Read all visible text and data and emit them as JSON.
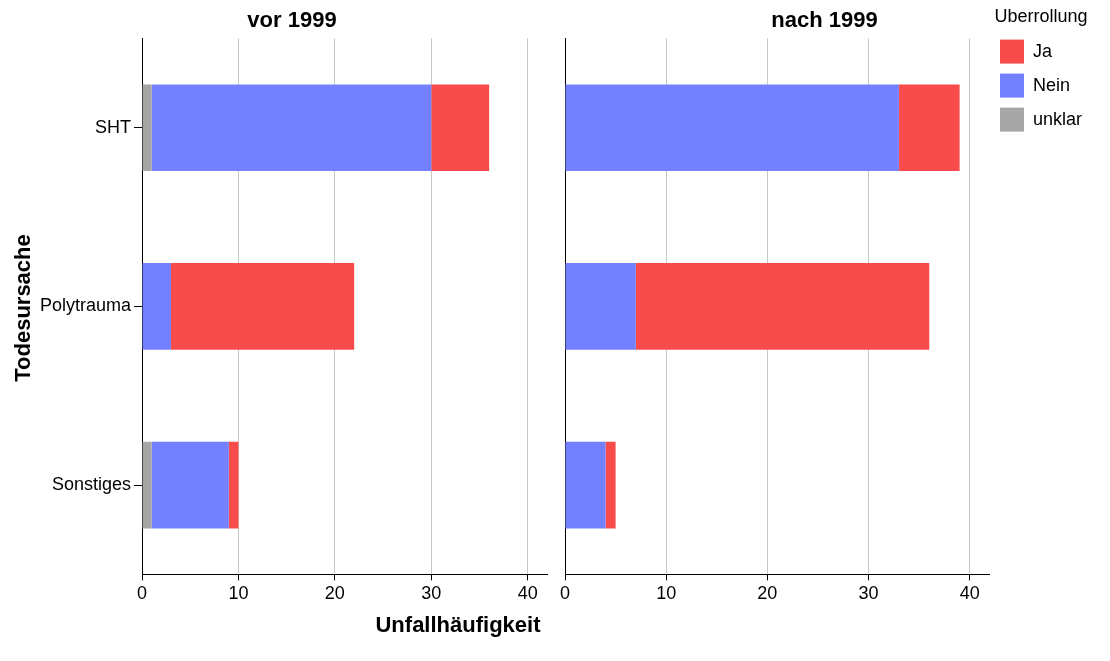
{
  "chart_data": [
    {
      "type": "bar",
      "orientation": "horizontal",
      "stacked": true,
      "title": "vor 1999",
      "xlabel": "Unfallhäufigkeit",
      "ylabel": "Todesursache",
      "categories": [
        "SHT",
        "Polytrauma",
        "Sonstiges"
      ],
      "series": [
        {
          "color": "#a6a6a6",
          "values": [
            1,
            0,
            1
          ]
        },
        {
          "color": "#7380ff",
          "values": [
            29,
            3,
            8
          ]
        },
        {
          "color": "#f84c4c",
          "values": [
            6,
            19,
            1
          ]
        }
      ],
      "xlim": [
        0,
        42
      ],
      "xticks": [
        0,
        10,
        20,
        30,
        40
      ],
      "grid": "x",
      "legend": false
    },
    {
      "type": "bar",
      "orientation": "horizontal",
      "stacked": true,
      "title": "nach 1999",
      "categories": [
        null,
        null,
        null
      ],
      "series": [
        {
          "name": "unklar",
          "color": "#a6a6a6",
          "values": [
            0,
            0,
            0
          ]
        },
        {
          "name": "Nein",
          "color": "#7380ff",
          "values": [
            33,
            7,
            4
          ]
        },
        {
          "name": "Ja",
          "color": "#f84c4c",
          "values": [
            6,
            29,
            1
          ]
        }
      ],
      "xlim": [
        0,
        42
      ],
      "xticks": [
        0,
        10,
        20,
        30,
        40
      ],
      "grid": "x",
      "tick_labels": "x",
      "legend": "right",
      "legend_title": "Überrollung"
    }
  ]
}
